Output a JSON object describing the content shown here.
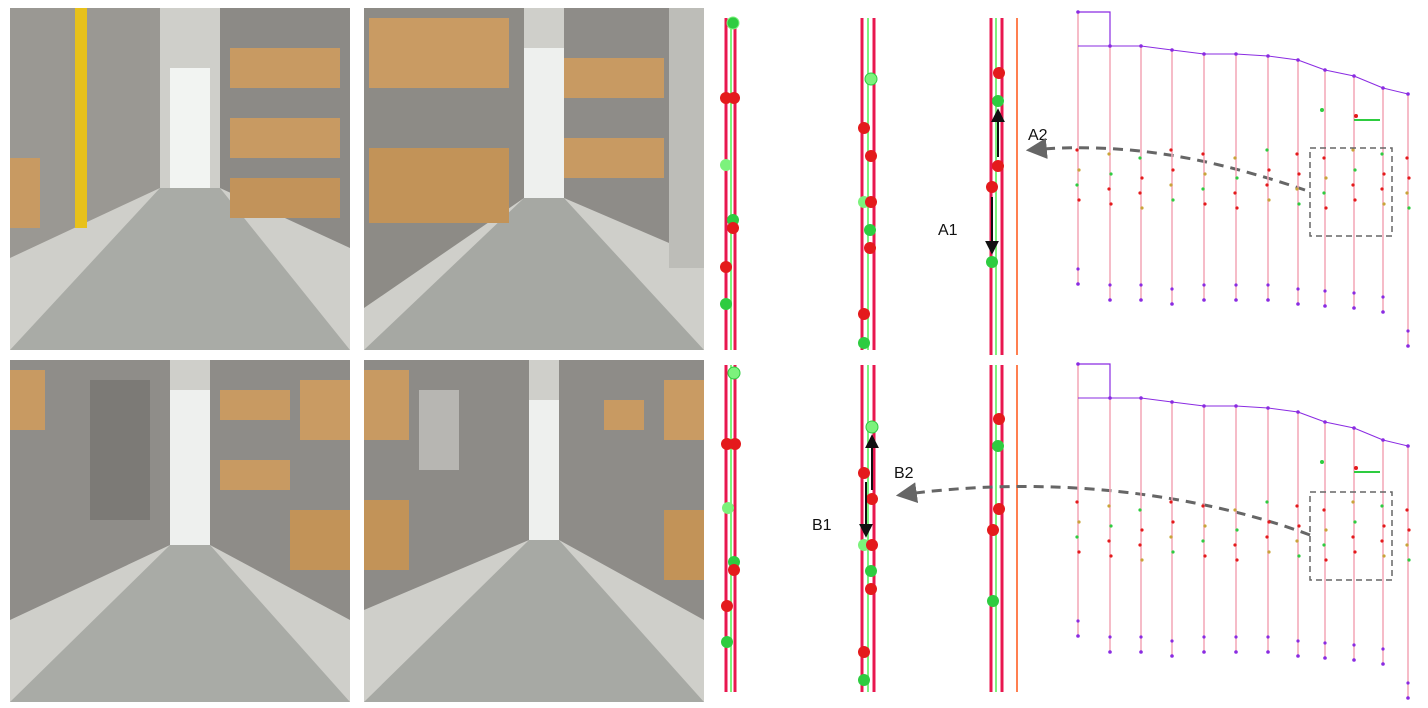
{
  "photos": [
    {
      "id": "p1",
      "description_name": "warehouse-aisle-photo-1"
    },
    {
      "id": "p2",
      "description_name": "warehouse-aisle-photo-2"
    },
    {
      "id": "p3",
      "description_name": "warehouse-aisle-photo-3"
    },
    {
      "id": "p4",
      "description_name": "warehouse-aisle-photo-4"
    }
  ],
  "labels": {
    "a1": "A1",
    "a2": "A2",
    "b1": "B1",
    "b2": "B2"
  },
  "colors": {
    "red_track": "#e8174f",
    "green_track": "#7cf27c",
    "red_node": "#e41a1c",
    "green_node": "#2ecc40",
    "orange_line": "#ff7f50",
    "map_purple": "#8a2be2",
    "map_pink": "#f4a6b6",
    "dashed_arrow": "#666666"
  }
}
